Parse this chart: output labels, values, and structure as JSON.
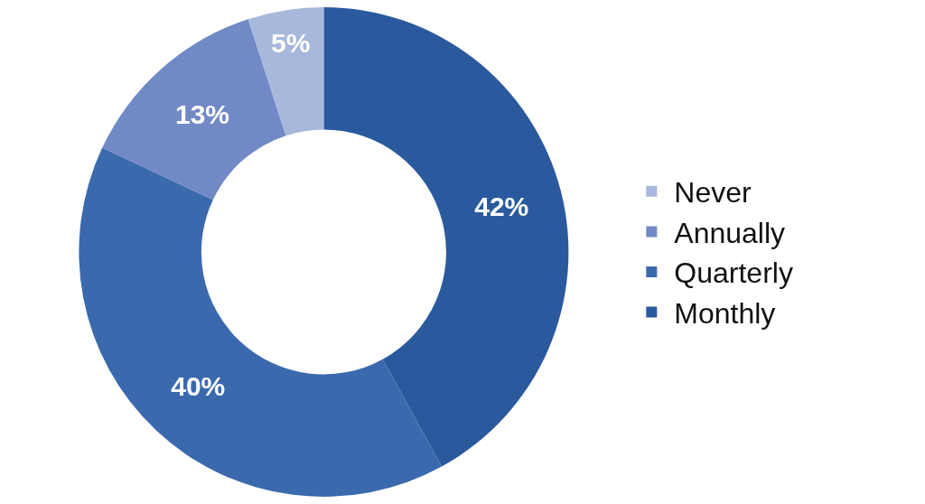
{
  "chart_data": {
    "type": "donut",
    "categories": [
      "Monthly",
      "Quarterly",
      "Annually",
      "Never"
    ],
    "values": [
      42,
      40,
      13,
      5
    ],
    "colors": [
      "#2a5a9d",
      "#3b69ad",
      "#7189c5",
      "#a8b7dc"
    ],
    "value_labels": [
      "42%",
      "40%",
      "13%",
      "5%"
    ],
    "legend": "right"
  }
}
